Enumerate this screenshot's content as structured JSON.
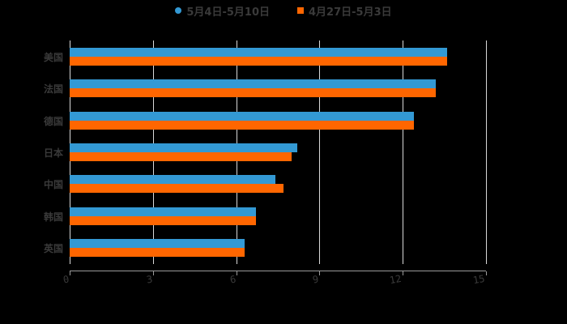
{
  "chart_data": {
    "type": "bar",
    "orientation": "horizontal",
    "title": "",
    "xlabel": "",
    "ylabel": "",
    "categories": [
      "美国",
      "法国",
      "德国",
      "日本",
      "中国",
      "韩国",
      "英国"
    ],
    "series": [
      {
        "name": "5月4日-5月10日",
        "color": "#3399d4",
        "marker": "circle",
        "values": [
          13.6,
          13.2,
          12.4,
          8.2,
          7.4,
          6.7,
          6.3
        ]
      },
      {
        "name": "4月27日-5月3日",
        "color": "#ff6600",
        "marker": "square",
        "values": [
          13.6,
          13.2,
          12.4,
          8.0,
          7.7,
          6.7,
          6.3
        ]
      }
    ],
    "xlim": [
      0,
      15
    ],
    "xticks": [
      0,
      3,
      6,
      9,
      12,
      15
    ],
    "grid": true,
    "legend_position": "top"
  },
  "colors": {
    "background": "#000000",
    "text": "#3a3a3a",
    "grid": "#d9d9d9"
  }
}
